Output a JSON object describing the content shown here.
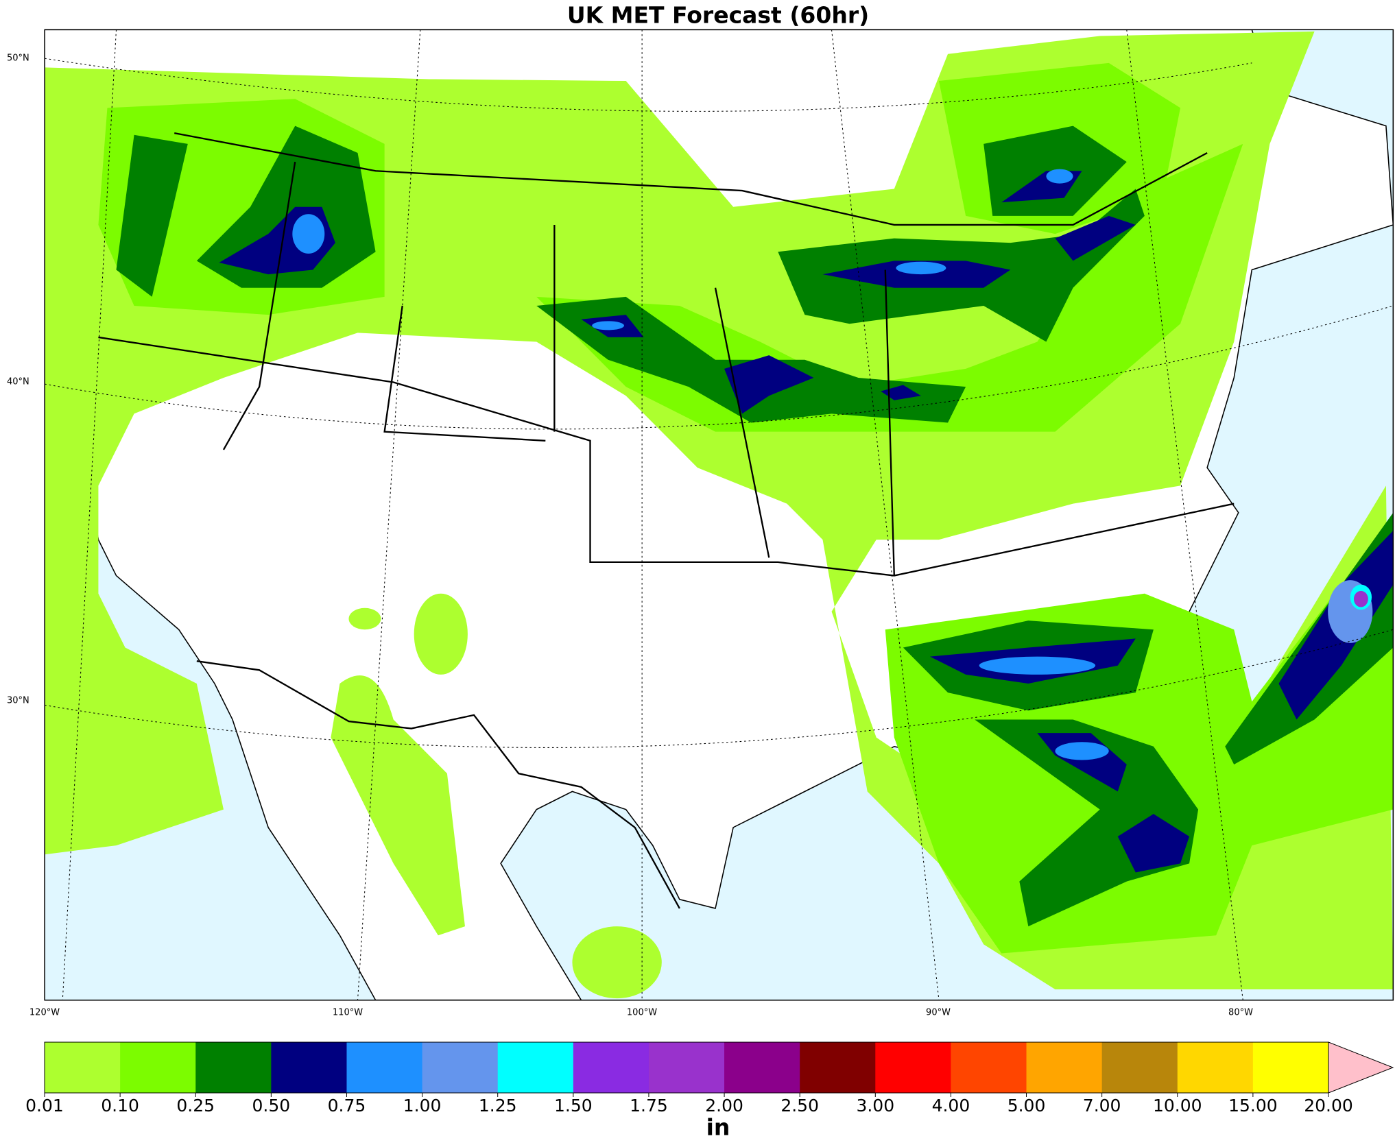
{
  "title": "UK MET Forecast (60hr)",
  "lat_labels": [
    "50°N",
    "40°N",
    "30°N"
  ],
  "lon_labels": [
    "120°W",
    "110°W",
    "100°W",
    "90°W",
    "80°W"
  ],
  "colorbar": {
    "levels": [
      {
        "value": 0.01,
        "label": "0.01"
      },
      {
        "value": 0.1,
        "label": "0.10"
      },
      {
        "value": 0.25,
        "label": "0.25"
      },
      {
        "value": 0.5,
        "label": "0.50"
      },
      {
        "value": 0.75,
        "label": "0.75"
      },
      {
        "value": 1,
        "label": "1.00"
      },
      {
        "value": 1.25,
        "label": "1.25"
      },
      {
        "value": 1.5,
        "label": "1.50"
      },
      {
        "value": 1.75,
        "label": "1.75"
      },
      {
        "value": 2,
        "label": "2.00"
      },
      {
        "value": 2.5,
        "label": "2.50"
      },
      {
        "value": 3,
        "label": "3.00"
      },
      {
        "value": 4,
        "label": "4.00"
      },
      {
        "value": 5,
        "label": "5.00"
      },
      {
        "value": 7,
        "label": "7.00"
      },
      {
        "value": 10,
        "label": "10.00"
      },
      {
        "value": 15,
        "label": "15.00"
      },
      {
        "value": 20,
        "label": "20.00"
      }
    ],
    "colors": [
      "#adff2f",
      "#7cfc00",
      "#008000",
      "#000080",
      "#1e90ff",
      "#6495ed",
      "#00ffff",
      "#8a2be2",
      "#9932cc",
      "#8b008b",
      "#800000",
      "#ff0000",
      "#ff4500",
      "#ffa500",
      "#b8860b",
      "#ffd700",
      "#ffff00"
    ],
    "extend_color": "#ffc0cb",
    "unit": "in"
  }
}
